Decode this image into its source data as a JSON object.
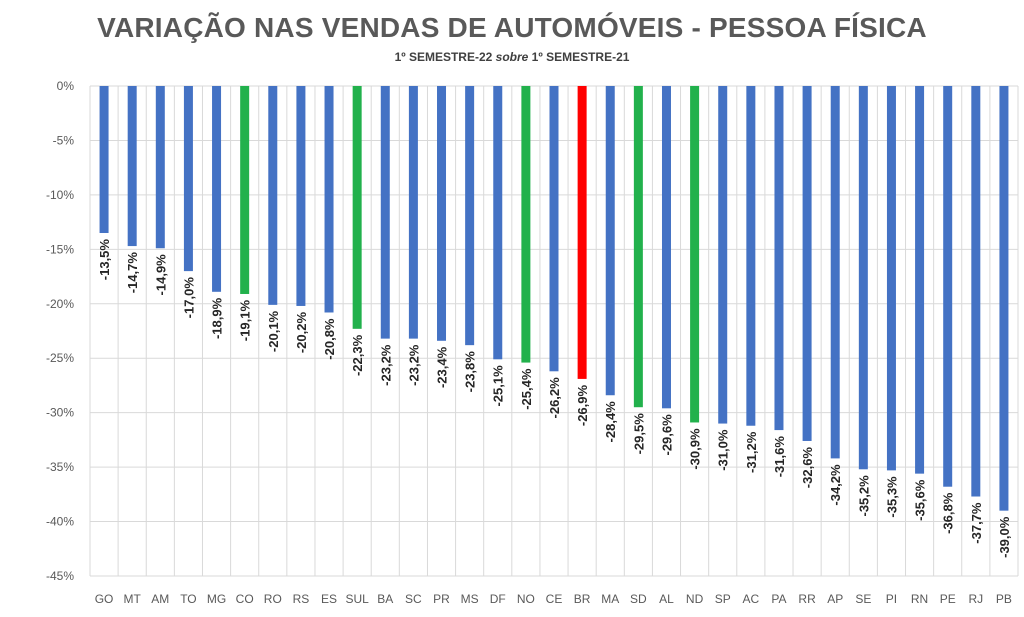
{
  "chart_data": {
    "type": "bar",
    "title": "VARIAÇÃO NAS VENDAS DE AUTOMÓVEIS - PESSOA FÍSICA",
    "subtitle": {
      "part1": "1º SEMESTRE-22 ",
      "italic": "sobre",
      "part2": " 1º SEMESTRE-21"
    },
    "ylim": [
      -45,
      0
    ],
    "yticks": [
      0,
      -5,
      -10,
      -15,
      -20,
      -25,
      -30,
      -35,
      -40,
      -45
    ],
    "ytick_labels": [
      "0%",
      "-5%",
      "-10%",
      "-15%",
      "-20%",
      "-25%",
      "-30%",
      "-35%",
      "-40%",
      "-45%"
    ],
    "grid": true,
    "categories": [
      "GO",
      "MT",
      "AM",
      "TO",
      "MG",
      "CO",
      "RO",
      "RS",
      "ES",
      "SUL",
      "BA",
      "SC",
      "PR",
      "MS",
      "DF",
      "NO",
      "CE",
      "BR",
      "MA",
      "SD",
      "AL",
      "ND",
      "SP",
      "AC",
      "PA",
      "RR",
      "AP",
      "SE",
      "PI",
      "RN",
      "PE",
      "RJ",
      "PB"
    ],
    "values": [
      -13.5,
      -14.7,
      -14.9,
      -17.0,
      -18.9,
      -19.1,
      -20.1,
      -20.2,
      -20.8,
      -22.3,
      -23.2,
      -23.2,
      -23.4,
      -23.8,
      -25.1,
      -25.4,
      -26.2,
      -26.9,
      -28.4,
      -29.5,
      -29.6,
      -30.9,
      -31.0,
      -31.2,
      -31.6,
      -32.6,
      -34.2,
      -35.2,
      -35.3,
      -35.6,
      -36.8,
      -37.7,
      -39.0
    ],
    "data_labels": [
      "-13,5%",
      "-14,7%",
      "-14,9%",
      "-17,0%",
      "-18,9%",
      "-19,1%",
      "-20,1%",
      "-20,2%",
      "-20,8%",
      "-22,3%",
      "-23,2%",
      "-23,2%",
      "-23,4%",
      "-23,8%",
      "-25,1%",
      "-25,4%",
      "-26,2%",
      "-26,9%",
      "-28,4%",
      "-29,5%",
      "-29,6%",
      "-30,9%",
      "-31,0%",
      "-31,2%",
      "-31,6%",
      "-32,6%",
      "-34,2%",
      "-35,2%",
      "-35,3%",
      "-35,6%",
      "-36,8%",
      "-37,7%",
      "-39,0%"
    ],
    "bar_colors": [
      "#4472C4",
      "#4472C4",
      "#4472C4",
      "#4472C4",
      "#4472C4",
      "#22B14C",
      "#4472C4",
      "#4472C4",
      "#4472C4",
      "#22B14C",
      "#4472C4",
      "#4472C4",
      "#4472C4",
      "#4472C4",
      "#4472C4",
      "#22B14C",
      "#4472C4",
      "#FF0000",
      "#4472C4",
      "#22B14C",
      "#4472C4",
      "#22B14C",
      "#4472C4",
      "#4472C4",
      "#4472C4",
      "#4472C4",
      "#4472C4",
      "#4472C4",
      "#4472C4",
      "#4472C4",
      "#4472C4",
      "#4472C4",
      "#4472C4"
    ]
  },
  "colors": {
    "states": "#4472C4",
    "regions": "#22B14C",
    "brazil": "#FF0000"
  }
}
